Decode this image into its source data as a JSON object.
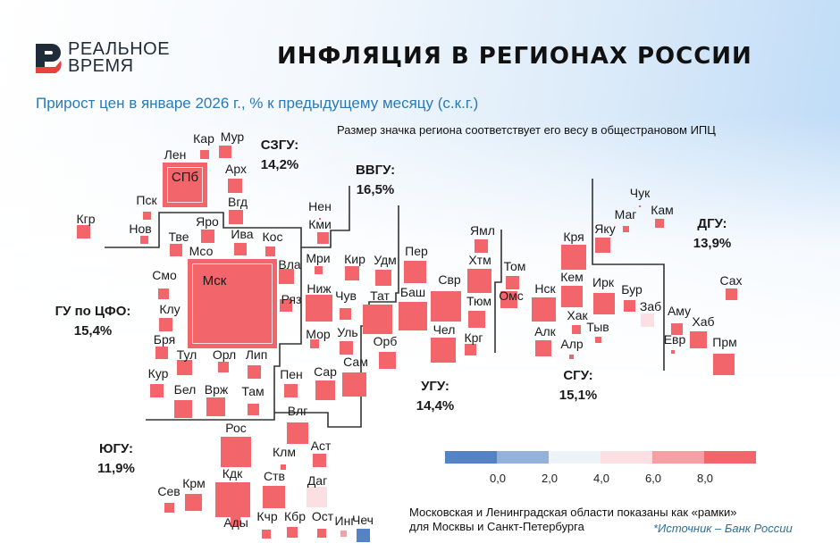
{
  "brand": {
    "line1": "РЕАЛЬНОЕ",
    "line2": "ВРЕМЯ",
    "colors": {
      "dark": "#1f2b38",
      "red": "#e8423f"
    }
  },
  "header": {
    "title": "ИНФЛЯЦИЯ В РЕГИОНАХ РОССИИ",
    "subtitle": "Прирост цен в январе 2026 г., % к предыдущему месяцу (с.к.г.)",
    "size_note": "Размер значка региона соответствует его весу в общестрановом ИПЦ"
  },
  "footer": {
    "note_line1": "Московская и Ленинградская области показаны как «рамки»",
    "note_line2": "для Москвы и Санкт-Петербурга",
    "source": "*Источник – Банк России"
  },
  "chart_data": {
    "type": "heatmap",
    "title": "ИНФЛЯЦИЯ В РЕГИОНАХ РОССИИ",
    "subtitle": "Прирост цен в январе 2026 г., % к предыдущему месяцу (с.к.г.)",
    "legend": {
      "placement": "bottom-right",
      "ticks": [
        "0,0",
        "2,0",
        "4,0",
        "6,0",
        "8,0"
      ],
      "bins": [
        {
          "range": "< 0,0",
          "color": "#5582c4"
        },
        {
          "range": "0,0–2,0",
          "color": "#94b1db"
        },
        {
          "range": "2,0–4,0",
          "color": "#eef2f9"
        },
        {
          "range": "4,0–6,0",
          "color": "#fbdfe2"
        },
        {
          "range": "6,0–8,0",
          "color": "#f5a0a5"
        },
        {
          "range": "> 8,0",
          "color": "#f2656a"
        }
      ]
    },
    "groups": [
      {
        "name": "СЗГУ:",
        "value": "14,2%"
      },
      {
        "name": "ВВГУ:",
        "value": "16,5%"
      },
      {
        "name": "ГУ по ЦФО:",
        "value": "15,4%"
      },
      {
        "name": "УГУ:",
        "value": "14,4%"
      },
      {
        "name": "СГУ:",
        "value": "15,1%"
      },
      {
        "name": "ДГУ:",
        "value": "13,9%"
      },
      {
        "name": "ЮГУ:",
        "value": "11,9%"
      }
    ],
    "regions": [
      {
        "code": "Кар",
        "bin": "> 8,0"
      },
      {
        "code": "Мур",
        "bin": "> 8,0"
      },
      {
        "code": "Лен",
        "bin": "> 8,0",
        "frame": true
      },
      {
        "code": "СПб",
        "bin": "> 8,0"
      },
      {
        "code": "Арх",
        "bin": "> 8,0"
      },
      {
        "code": "Вгд",
        "bin": "> 8,0"
      },
      {
        "code": "Пск",
        "bin": "> 8,0"
      },
      {
        "code": "Нов",
        "bin": "> 8,0"
      },
      {
        "code": "Кгр",
        "bin": "> 8,0"
      },
      {
        "code": "Нен",
        "bin": "> 8,0"
      },
      {
        "code": "Кми",
        "bin": "> 8,0"
      },
      {
        "code": "Тве",
        "bin": "> 8,0"
      },
      {
        "code": "Яро",
        "bin": "> 8,0"
      },
      {
        "code": "Ива",
        "bin": "> 8,0"
      },
      {
        "code": "Кос",
        "bin": "> 8,0"
      },
      {
        "code": "Мсо",
        "bin": "> 8,0",
        "frame": true
      },
      {
        "code": "Мск",
        "bin": "> 8,0"
      },
      {
        "code": "Вла",
        "bin": "> 8,0"
      },
      {
        "code": "Ряз",
        "bin": "> 8,0"
      },
      {
        "code": "Смо",
        "bin": "> 8,0"
      },
      {
        "code": "Клу",
        "bin": "> 8,0"
      },
      {
        "code": "Бря",
        "bin": "> 8,0"
      },
      {
        "code": "Тул",
        "bin": "> 8,0"
      },
      {
        "code": "Орл",
        "bin": "> 8,0"
      },
      {
        "code": "Лип",
        "bin": "> 8,0"
      },
      {
        "code": "Кур",
        "bin": "> 8,0"
      },
      {
        "code": "Бел",
        "bin": "> 8,0"
      },
      {
        "code": "Врж",
        "bin": "> 8,0"
      },
      {
        "code": "Там",
        "bin": "> 8,0"
      },
      {
        "code": "Мри",
        "bin": "> 8,0"
      },
      {
        "code": "Кир",
        "bin": "> 8,0"
      },
      {
        "code": "Удм",
        "bin": "> 8,0"
      },
      {
        "code": "Ниж",
        "bin": "> 8,0"
      },
      {
        "code": "Чув",
        "bin": "> 8,0"
      },
      {
        "code": "Тат",
        "bin": "> 8,0"
      },
      {
        "code": "Мор",
        "bin": "> 8,0"
      },
      {
        "code": "Уль",
        "bin": "> 8,0"
      },
      {
        "code": "Пен",
        "bin": "> 8,0"
      },
      {
        "code": "Сар",
        "bin": "> 8,0"
      },
      {
        "code": "Сам",
        "bin": "> 8,0"
      },
      {
        "code": "Пер",
        "bin": "> 8,0"
      },
      {
        "code": "Баш",
        "bin": "> 8,0"
      },
      {
        "code": "Орб",
        "bin": "> 8,0"
      },
      {
        "code": "Свр",
        "bin": "> 8,0"
      },
      {
        "code": "Чел",
        "bin": "> 8,0"
      },
      {
        "code": "Ямл",
        "bin": "> 8,0"
      },
      {
        "code": "Хтм",
        "bin": "> 8,0"
      },
      {
        "code": "Тюм",
        "bin": "> 8,0"
      },
      {
        "code": "Крг",
        "bin": "> 8,0"
      },
      {
        "code": "Том",
        "bin": "> 8,0"
      },
      {
        "code": "Омс",
        "bin": "> 8,0"
      },
      {
        "code": "Нск",
        "bin": "> 8,0"
      },
      {
        "code": "Алк",
        "bin": "> 8,0"
      },
      {
        "code": "Алр",
        "bin": "> 8,0"
      },
      {
        "code": "Кря",
        "bin": "> 8,0"
      },
      {
        "code": "Кем",
        "bin": "> 8,0"
      },
      {
        "code": "Хак",
        "bin": "> 8,0"
      },
      {
        "code": "Ирк",
        "bin": "> 8,0"
      },
      {
        "code": "Тыв",
        "bin": "> 8,0"
      },
      {
        "code": "Бур",
        "bin": "> 8,0"
      },
      {
        "code": "Заб",
        "bin": "4,0–6,0"
      },
      {
        "code": "Яку",
        "bin": "> 8,0"
      },
      {
        "code": "Маг",
        "bin": "> 8,0"
      },
      {
        "code": "Чук",
        "bin": "> 8,0"
      },
      {
        "code": "Кам",
        "bin": "> 8,0"
      },
      {
        "code": "Аму",
        "bin": "> 8,0"
      },
      {
        "code": "Хаб",
        "bin": "> 8,0"
      },
      {
        "code": "Евр",
        "bin": "> 8,0"
      },
      {
        "code": "Прм",
        "bin": "> 8,0"
      },
      {
        "code": "Сах",
        "bin": "> 8,0"
      },
      {
        "code": "Рос",
        "bin": "> 8,0"
      },
      {
        "code": "Влг",
        "bin": "> 8,0"
      },
      {
        "code": "Клм",
        "bin": "> 8,0"
      },
      {
        "code": "Аст",
        "bin": "> 8,0"
      },
      {
        "code": "Сев",
        "bin": "> 8,0"
      },
      {
        "code": "Крм",
        "bin": "> 8,0"
      },
      {
        "code": "Кдк",
        "bin": "> 8,0"
      },
      {
        "code": "Ств",
        "bin": "> 8,0"
      },
      {
        "code": "Даг",
        "bin": "4,0–6,0"
      },
      {
        "code": "Ады",
        "bin": "> 8,0"
      },
      {
        "code": "Кчр",
        "bin": "> 8,0"
      },
      {
        "code": "Кбр",
        "bin": "> 8,0"
      },
      {
        "code": "Ост",
        "bin": "> 8,0"
      },
      {
        "code": "Инг",
        "bin": "6,0–8,0"
      },
      {
        "code": "Чеч",
        "bin": "< 0,0"
      }
    ]
  }
}
